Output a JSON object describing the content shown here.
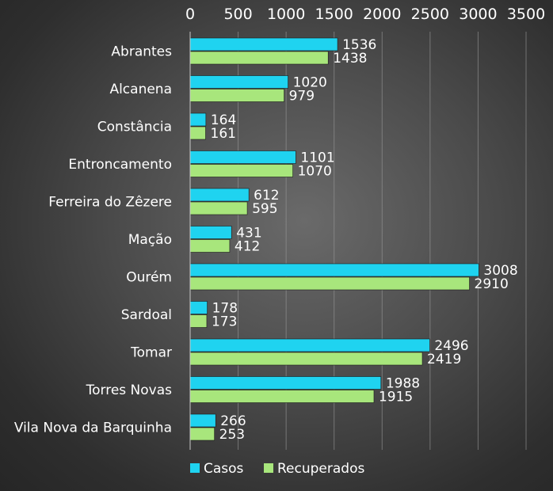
{
  "chart_data": {
    "type": "bar",
    "orientation": "horizontal",
    "categories": [
      "Abrantes",
      "Alcanena",
      "Constância",
      "Entroncamento",
      "Ferreira do Zêzere",
      "Mação",
      "Ourém",
      "Sardoal",
      "Tomar",
      "Torres Novas",
      "Vila Nova da Barquinha"
    ],
    "series": [
      {
        "name": "Casos",
        "color": "#1fd3f0",
        "values": [
          1536,
          1020,
          164,
          1101,
          612,
          431,
          3008,
          178,
          2496,
          1988,
          266
        ]
      },
      {
        "name": "Recuperados",
        "color": "#a8e67c",
        "values": [
          1438,
          979,
          161,
          1070,
          595,
          412,
          2910,
          173,
          2419,
          1915,
          253
        ]
      }
    ],
    "xlim": [
      0,
      3500
    ],
    "x_ticks": [
      "0",
      "500",
      "1000",
      "1500",
      "2000",
      "2500",
      "3000",
      "3500"
    ],
    "x_axis_position": "top",
    "grid": true,
    "legend_position": "bottom-left",
    "title": "",
    "xlabel": "",
    "ylabel": ""
  }
}
